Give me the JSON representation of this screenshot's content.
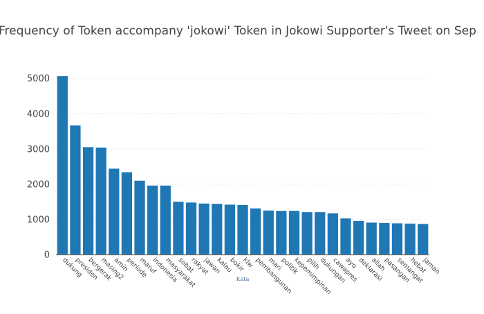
{
  "chart_data": {
    "type": "bar",
    "title": "Frequency of Token accompany 'jokowi' Token in Jokowi Supporter's Tweet on Sep",
    "xlabel": "Kata",
    "ylabel": "",
    "categories": [
      "dukung",
      "presiden",
      "bergerak",
      "masing2",
      "amin",
      "periode",
      "maruf",
      "indonesia",
      "masyarakat",
      "sobat",
      "rakyat",
      "jawan",
      "kalau",
      "bokir",
      "klw",
      "pembangunan",
      "mari",
      "politik",
      "kepemimpinan",
      "pilih",
      "dukungan",
      "cawapres",
      "ayo",
      "deklarasi",
      "allah",
      "pasangan",
      "semangat",
      "hebat",
      "jaman"
    ],
    "values": [
      5070,
      3670,
      3050,
      3040,
      2440,
      2340,
      2100,
      1960,
      1960,
      1500,
      1480,
      1450,
      1440,
      1420,
      1410,
      1310,
      1250,
      1240,
      1240,
      1210,
      1210,
      1170,
      1030,
      960,
      910,
      900,
      890,
      880,
      870
    ],
    "yticks": [
      0,
      1000,
      2000,
      3000,
      4000,
      5000
    ],
    "ylim": [
      0,
      5230
    ],
    "grid": true,
    "bar_color": "#1f77b4",
    "legend": "none"
  }
}
